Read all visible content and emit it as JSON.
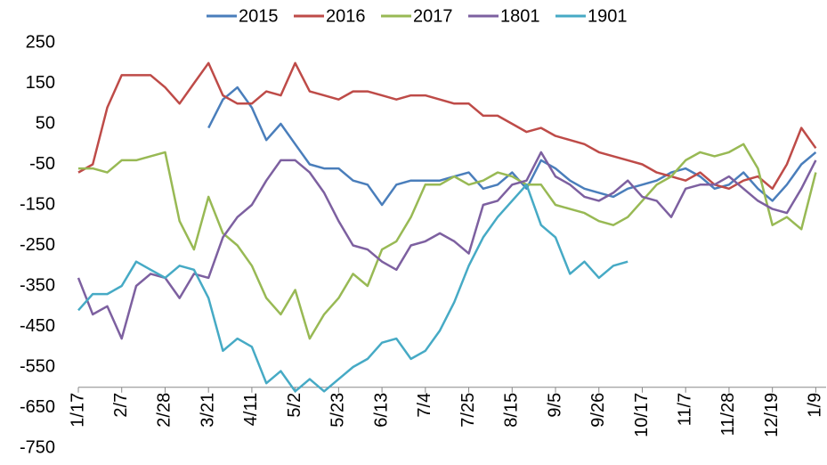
{
  "chart_data": {
    "type": "line",
    "x": [
      0,
      7,
      14,
      21,
      28,
      35,
      42,
      49,
      56,
      63,
      70,
      77,
      84,
      91,
      98,
      105,
      112,
      119,
      126,
      133,
      140,
      147,
      154,
      161,
      168,
      175,
      182,
      189,
      196,
      203,
      210,
      217,
      224,
      231,
      238,
      245,
      252,
      259,
      266,
      273,
      280,
      287,
      294,
      301,
      308,
      315,
      322,
      329,
      336,
      343,
      350,
      357
    ],
    "xlim": [
      0,
      362
    ],
    "xticks": [
      {
        "value": 0,
        "label": "1/17"
      },
      {
        "value": 21,
        "label": "2/7"
      },
      {
        "value": 42,
        "label": "2/28"
      },
      {
        "value": 63,
        "label": "3/21"
      },
      {
        "value": 84,
        "label": "4/11"
      },
      {
        "value": 105,
        "label": "5/2"
      },
      {
        "value": 126,
        "label": "5/23"
      },
      {
        "value": 147,
        "label": "6/13"
      },
      {
        "value": 168,
        "label": "7/4"
      },
      {
        "value": 189,
        "label": "7/25"
      },
      {
        "value": 210,
        "label": "8/15"
      },
      {
        "value": 231,
        "label": "9/5"
      },
      {
        "value": 252,
        "label": "9/26"
      },
      {
        "value": 273,
        "label": "10/17"
      },
      {
        "value": 294,
        "label": "11/7"
      },
      {
        "value": 315,
        "label": "11/28"
      },
      {
        "value": 336,
        "label": "12/19"
      },
      {
        "value": 357,
        "label": "1/9"
      }
    ],
    "ylim": [
      -750,
      250
    ],
    "yticks": [
      -750,
      -650,
      -550,
      -450,
      -350,
      -250,
      -150,
      -50,
      50,
      150,
      250
    ],
    "xaxis_crosses": -600,
    "legend": "top",
    "series": [
      {
        "name": "2015",
        "color": "#4a7ebb",
        "values": [
          null,
          null,
          null,
          null,
          null,
          null,
          null,
          null,
          null,
          40,
          110,
          140,
          90,
          10,
          50,
          0,
          -50,
          -60,
          -60,
          -90,
          -100,
          -150,
          -100,
          -90,
          -90,
          -90,
          -80,
          -70,
          -110,
          -100,
          -70,
          -110,
          -40,
          -60,
          -90,
          -110,
          -120,
          -130,
          -110,
          -100,
          -90,
          -70,
          -60,
          -80,
          -110,
          -100,
          -70,
          -110,
          -140,
          -100,
          -50,
          -20
        ]
      },
      {
        "name": "2016",
        "color": "#be4b48",
        "values": [
          -70,
          -50,
          90,
          170,
          170,
          170,
          140,
          100,
          150,
          200,
          120,
          100,
          100,
          130,
          120,
          200,
          130,
          120,
          110,
          130,
          130,
          120,
          110,
          120,
          120,
          110,
          100,
          100,
          70,
          70,
          50,
          30,
          40,
          20,
          10,
          0,
          -20,
          -30,
          -40,
          -50,
          -70,
          -80,
          -90,
          -70,
          -100,
          -110,
          -90,
          -80,
          -110,
          -50,
          40,
          -10
        ]
      },
      {
        "name": "2017",
        "color": "#98b954",
        "values": [
          -60,
          -60,
          -70,
          -40,
          -40,
          -30,
          -20,
          -190,
          -260,
          -130,
          -220,
          -250,
          -300,
          -380,
          -420,
          -360,
          -480,
          -420,
          -380,
          -320,
          -350,
          -260,
          -240,
          -180,
          -100,
          -100,
          -80,
          -100,
          -90,
          -70,
          -80,
          -100,
          -100,
          -150,
          -160,
          -170,
          -190,
          -200,
          -180,
          -140,
          -100,
          -80,
          -40,
          -20,
          -30,
          -20,
          0,
          -60,
          -200,
          -180,
          -210,
          -70
        ]
      },
      {
        "name": "1801",
        "color": "#7d60a0",
        "values": [
          -330,
          -420,
          -400,
          -480,
          -350,
          -320,
          -330,
          -380,
          -320,
          -330,
          -230,
          -180,
          -150,
          -90,
          -40,
          -40,
          -70,
          -120,
          -190,
          -250,
          -260,
          -290,
          -310,
          -250,
          -240,
          -220,
          -240,
          -270,
          -150,
          -140,
          -100,
          -90,
          -20,
          -80,
          -100,
          -130,
          -140,
          -120,
          -90,
          -130,
          -140,
          -180,
          -110,
          -100,
          -100,
          -80,
          -110,
          -140,
          -160,
          -170,
          -110,
          -40
        ]
      },
      {
        "name": "1901",
        "color": "#46aac5",
        "values": [
          -410,
          -370,
          -370,
          -350,
          -290,
          -310,
          -330,
          -300,
          -310,
          -380,
          -510,
          -480,
          -500,
          -590,
          -560,
          -610,
          -580,
          -610,
          -580,
          -550,
          -530,
          -490,
          -480,
          -530,
          -510,
          -460,
          -390,
          -300,
          -230,
          -180,
          -140,
          -100,
          -200,
          -230,
          -320,
          -290,
          -330,
          -300,
          -290,
          null,
          null,
          null,
          null,
          null,
          null,
          null,
          null,
          null,
          null,
          null,
          null,
          null
        ]
      }
    ]
  }
}
